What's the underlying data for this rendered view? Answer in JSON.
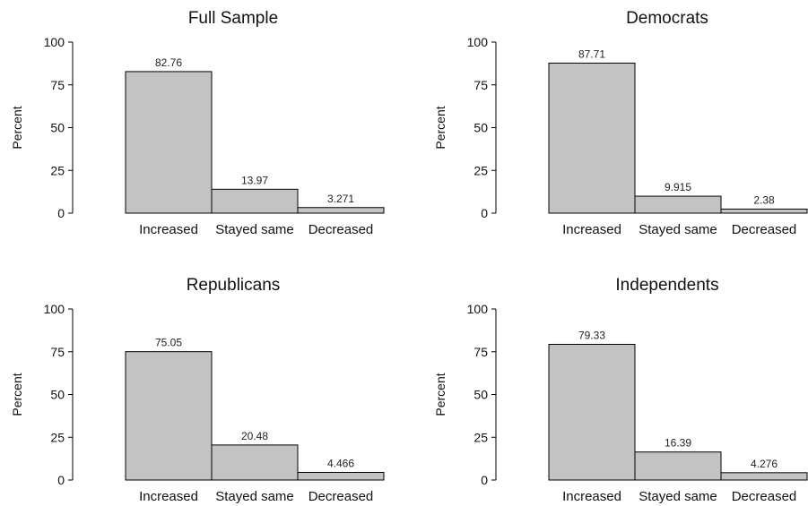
{
  "chart_data": [
    {
      "type": "bar",
      "title": "Full Sample",
      "ylabel": "Percent",
      "xlabel": "",
      "categories": [
        "Increased",
        "Stayed same",
        "Decreased"
      ],
      "values": [
        82.76,
        13.97,
        3.271
      ],
      "value_labels": [
        "82.76",
        "13.97",
        "3.271"
      ],
      "ylim": [
        0,
        100
      ],
      "yticks": [
        0,
        25,
        50,
        75,
        100
      ],
      "bar_color": "#c3c3c3",
      "grid": false,
      "legend": "none"
    },
    {
      "type": "bar",
      "title": "Democrats",
      "ylabel": "Percent",
      "xlabel": "",
      "categories": [
        "Increased",
        "Stayed same",
        "Decreased"
      ],
      "values": [
        87.71,
        9.915,
        2.38
      ],
      "value_labels": [
        "87.71",
        "9.915",
        "2.38"
      ],
      "ylim": [
        0,
        100
      ],
      "yticks": [
        0,
        25,
        50,
        75,
        100
      ],
      "bar_color": "#c3c3c3",
      "grid": false,
      "legend": "none"
    },
    {
      "type": "bar",
      "title": "Republicans",
      "ylabel": "Percent",
      "xlabel": "",
      "categories": [
        "Increased",
        "Stayed same",
        "Decreased"
      ],
      "values": [
        75.05,
        20.48,
        4.466
      ],
      "value_labels": [
        "75.05",
        "20.48",
        "4.466"
      ],
      "ylim": [
        0,
        100
      ],
      "yticks": [
        0,
        25,
        50,
        75,
        100
      ],
      "bar_color": "#c3c3c3",
      "grid": false,
      "legend": "none"
    },
    {
      "type": "bar",
      "title": "Independents",
      "ylabel": "Percent",
      "xlabel": "",
      "categories": [
        "Increased",
        "Stayed same",
        "Decreased"
      ],
      "values": [
        79.33,
        16.39,
        4.276
      ],
      "value_labels": [
        "79.33",
        "16.39",
        "4.276"
      ],
      "ylim": [
        0,
        100
      ],
      "yticks": [
        0,
        25,
        50,
        75,
        100
      ],
      "bar_color": "#c3c3c3",
      "grid": false,
      "legend": "none"
    }
  ]
}
